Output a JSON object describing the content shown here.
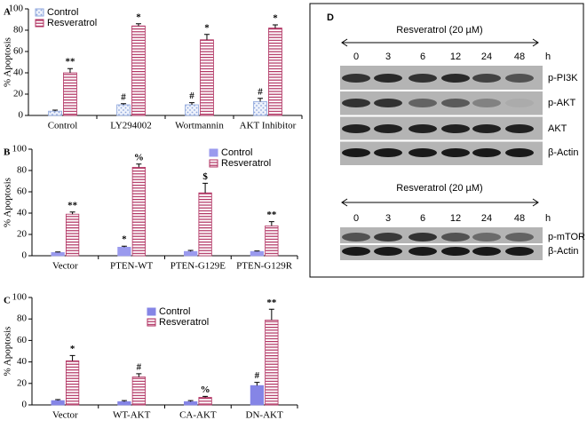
{
  "chart_data": [
    {
      "panel": "A",
      "type": "bar",
      "ylabel": "% Apoptosis",
      "legend": "top-left",
      "categories": [
        "Control",
        "LY294002",
        "Wortmannin",
        "AKT Inhibitor"
      ],
      "series": [
        {
          "name": "Control",
          "color": "#8ea6dc",
          "fill": "dots",
          "values": [
            4,
            10,
            10,
            13
          ],
          "errors": [
            1,
            1,
            2,
            3
          ],
          "annotations": [
            null,
            "#",
            "#",
            "#"
          ]
        },
        {
          "name": "Resveratrol",
          "color": "#b03060",
          "fill": "stripes",
          "values": [
            40,
            84,
            71,
            82
          ],
          "errors": [
            4,
            2,
            5,
            3
          ],
          "annotations": [
            "**",
            "*",
            "*",
            "*"
          ]
        }
      ],
      "ylim": [
        0,
        100
      ],
      "yticks": [
        0,
        20,
        40,
        60,
        80,
        100
      ]
    },
    {
      "panel": "B",
      "type": "bar",
      "ylabel": "% Apoptosis",
      "legend": "top-right",
      "categories": [
        "Vector",
        "PTEN-WT",
        "PTEN-G129E",
        "PTEN-G129R"
      ],
      "series": [
        {
          "name": "Control",
          "color": "#9a9aee",
          "fill": "solid",
          "values": [
            3,
            8,
            4,
            4
          ],
          "errors": [
            0.5,
            1,
            1,
            0.5
          ],
          "annotations": [
            null,
            "*",
            null,
            null
          ]
        },
        {
          "name": "Resveratrol",
          "color": "#b03060",
          "fill": "stripes",
          "values": [
            39,
            83,
            59,
            28
          ],
          "errors": [
            2,
            3,
            9,
            4
          ],
          "annotations": [
            "**",
            "%",
            "$",
            "**"
          ]
        }
      ],
      "ylim": [
        0,
        100
      ],
      "yticks": [
        0,
        20,
        40,
        60,
        80,
        100
      ]
    },
    {
      "panel": "C",
      "type": "bar",
      "ylabel": "% Apoptosis",
      "legend": "top-center",
      "categories": [
        "Vector",
        "WT-AKT",
        "CA-AKT",
        "DN-AKT"
      ],
      "series": [
        {
          "name": "Control",
          "color": "#8585e6",
          "fill": "solid",
          "values": [
            4,
            3,
            3,
            18
          ],
          "errors": [
            1,
            1,
            1,
            3
          ],
          "annotations": [
            null,
            null,
            null,
            "#"
          ]
        },
        {
          "name": "Resveratrol",
          "color": "#b03060",
          "fill": "stripes",
          "values": [
            41,
            26,
            7,
            79
          ],
          "errors": [
            5,
            3,
            1,
            10
          ],
          "annotations": [
            "*",
            "#",
            "%",
            "**"
          ]
        }
      ],
      "ylim": [
        0,
        100
      ],
      "yticks": [
        0,
        20,
        40,
        60,
        80,
        100
      ]
    }
  ],
  "blot": {
    "panel": "D",
    "blocks": [
      {
        "treatment": "Resveratrol (20 µM)",
        "lanes": [
          "0",
          "3",
          "6",
          "12",
          "24",
          "48"
        ],
        "unit": "h",
        "rows": [
          "p-PI3K",
          "p-AKT",
          "AKT",
          "β-Actin"
        ]
      },
      {
        "treatment": "Resveratrol (20 µM)",
        "lanes": [
          "0",
          "3",
          "6",
          "12",
          "24",
          "48"
        ],
        "unit": "h",
        "rows": [
          "p-mTOR",
          "β-Actin"
        ]
      }
    ]
  }
}
